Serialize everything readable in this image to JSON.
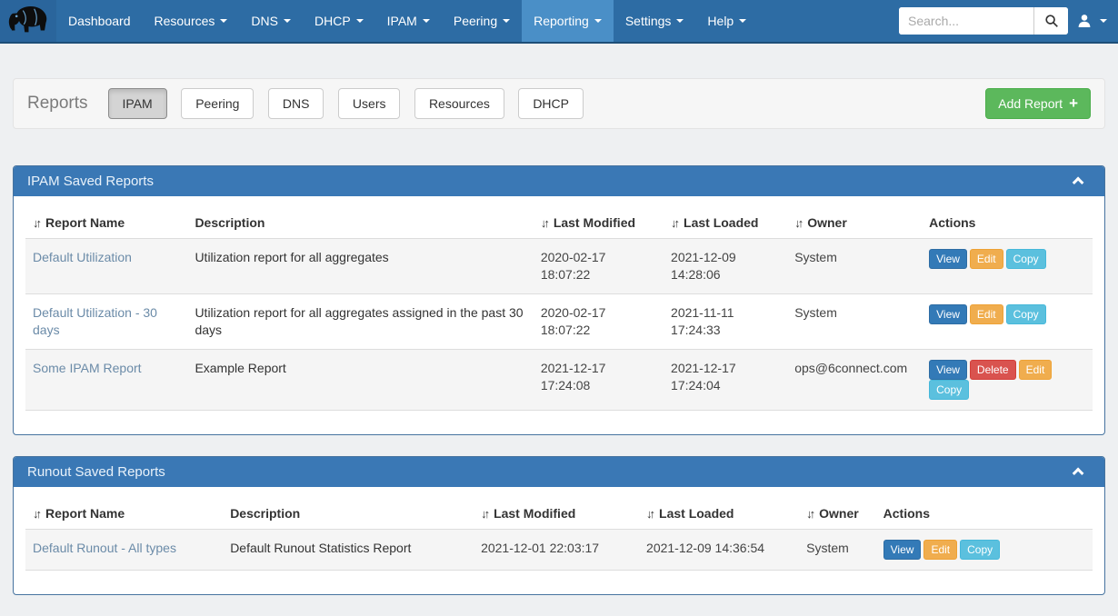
{
  "colors": {
    "navbar": "#2d6ca4",
    "navbar_brand": "#2a659c",
    "navbar_active": "#4a8fc7",
    "panel_header": "#3a78b5",
    "link": "#6b8ba8",
    "add_bg": "#5cb85c",
    "add_border": "#4cae4c"
  },
  "icons": {
    "sort": "↓↑",
    "plus": "+",
    "chevron": "chevron-up",
    "search": "magnifier",
    "user": "person-silhouette",
    "brand": "mammoth-logo"
  },
  "navbar": {
    "search_placeholder": "Search...",
    "items": [
      {
        "label": "Dashboard",
        "caret": false,
        "active": false
      },
      {
        "label": "Resources",
        "caret": true,
        "active": false
      },
      {
        "label": "DNS",
        "caret": true,
        "active": false
      },
      {
        "label": "DHCP",
        "caret": true,
        "active": false
      },
      {
        "label": "IPAM",
        "caret": true,
        "active": false
      },
      {
        "label": "Peering",
        "caret": true,
        "active": false
      },
      {
        "label": "Reporting",
        "caret": true,
        "active": true
      },
      {
        "label": "Settings",
        "caret": true,
        "active": false
      },
      {
        "label": "Help",
        "caret": true,
        "active": false
      }
    ]
  },
  "reports_bar": {
    "title": "Reports",
    "add_button_label": "Add Report",
    "tabs": [
      {
        "label": "IPAM",
        "active": true
      },
      {
        "label": "Peering",
        "active": false
      },
      {
        "label": "DNS",
        "active": false
      },
      {
        "label": "Users",
        "active": false
      },
      {
        "label": "Resources",
        "active": false
      },
      {
        "label": "DHCP",
        "active": false
      }
    ]
  },
  "action_styles": {
    "View": {
      "bg": "#337ab7",
      "border": "#2e6da4"
    },
    "Edit": {
      "bg": "#f0ad4e",
      "border": "#eea236"
    },
    "Copy": {
      "bg": "#5bc0de",
      "border": "#46b8da"
    },
    "Delete": {
      "bg": "#d9534f",
      "border": "#d43f3a"
    }
  },
  "panels": [
    {
      "title": "IPAM Saved Reports",
      "columns": [
        {
          "label": "Report Name",
          "sortable": true,
          "width": "15.2%"
        },
        {
          "label": "Description",
          "sortable": false,
          "width": "32.4%"
        },
        {
          "label": "Last Modified",
          "sortable": true,
          "width": "12.2%"
        },
        {
          "label": "Last Loaded",
          "sortable": true,
          "width": "11.6%"
        },
        {
          "label": "Owner",
          "sortable": true,
          "width": "12.6%"
        },
        {
          "label": "Actions",
          "sortable": false,
          "width": "16.0%"
        }
      ],
      "rows": [
        {
          "name": "Default Utilization",
          "description": "Utilization report for all aggregates",
          "last_modified": "2020-02-17 18:07:22",
          "last_loaded": "2021-12-09 14:28:06",
          "owner": "System",
          "actions": [
            "View",
            "Edit",
            "Copy"
          ]
        },
        {
          "name": "Default Utilization - 30 days",
          "description": "Utilization report for all aggregates assigned in the past 30 days",
          "last_modified": "2020-02-17 18:07:22",
          "last_loaded": "2021-11-11 17:24:33",
          "owner": "System",
          "actions": [
            "View",
            "Edit",
            "Copy"
          ]
        },
        {
          "name": "Some IPAM Report",
          "description": "Example Report",
          "last_modified": "2021-12-17 17:24:08",
          "last_loaded": "2021-12-17 17:24:04",
          "owner": "ops@6connect.com",
          "actions": [
            "View",
            "Delete",
            "Edit",
            "Copy"
          ]
        }
      ]
    },
    {
      "title": "Runout Saved Reports",
      "columns": [
        {
          "label": "Report Name",
          "sortable": true,
          "width": "18.5%"
        },
        {
          "label": "Description",
          "sortable": false,
          "width": "23.5%"
        },
        {
          "label": "Last Modified",
          "sortable": true,
          "width": "15.5%"
        },
        {
          "label": "Last Loaded",
          "sortable": true,
          "width": "15.0%"
        },
        {
          "label": "Owner",
          "sortable": true,
          "width": "7.2%"
        },
        {
          "label": "Actions",
          "sortable": false,
          "width": "20.3%"
        }
      ],
      "rows": [
        {
          "name": "Default Runout - All types",
          "description": "Default Runout Statistics Report",
          "last_modified": "2021-12-01 22:03:17",
          "last_loaded": "2021-12-09 14:36:54",
          "owner": "System",
          "actions": [
            "View",
            "Edit",
            "Copy"
          ]
        }
      ]
    }
  ]
}
